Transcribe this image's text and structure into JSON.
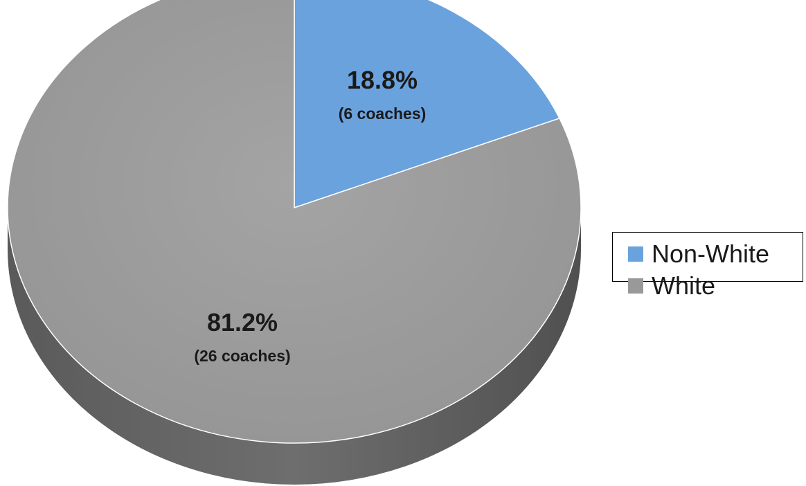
{
  "chart_data": {
    "type": "pie",
    "title": "",
    "slices": [
      {
        "name": "Non-White",
        "percent": 18.8,
        "count": 6,
        "pct_label": "18.8%",
        "count_label": "(6 coaches)",
        "color": "#6aa2de"
      },
      {
        "name": "White",
        "percent": 81.2,
        "count": 26,
        "pct_label": "81.2%",
        "count_label": "(26 coaches)",
        "color": "#999999"
      }
    ],
    "start_angle": "12 o'clock, clockwise",
    "style": "3d-tilted",
    "legend_position": "right"
  },
  "legend": {
    "items": [
      {
        "label": "Non-White",
        "color": "#6aa2de"
      },
      {
        "label": "White",
        "color": "#999999"
      }
    ]
  }
}
